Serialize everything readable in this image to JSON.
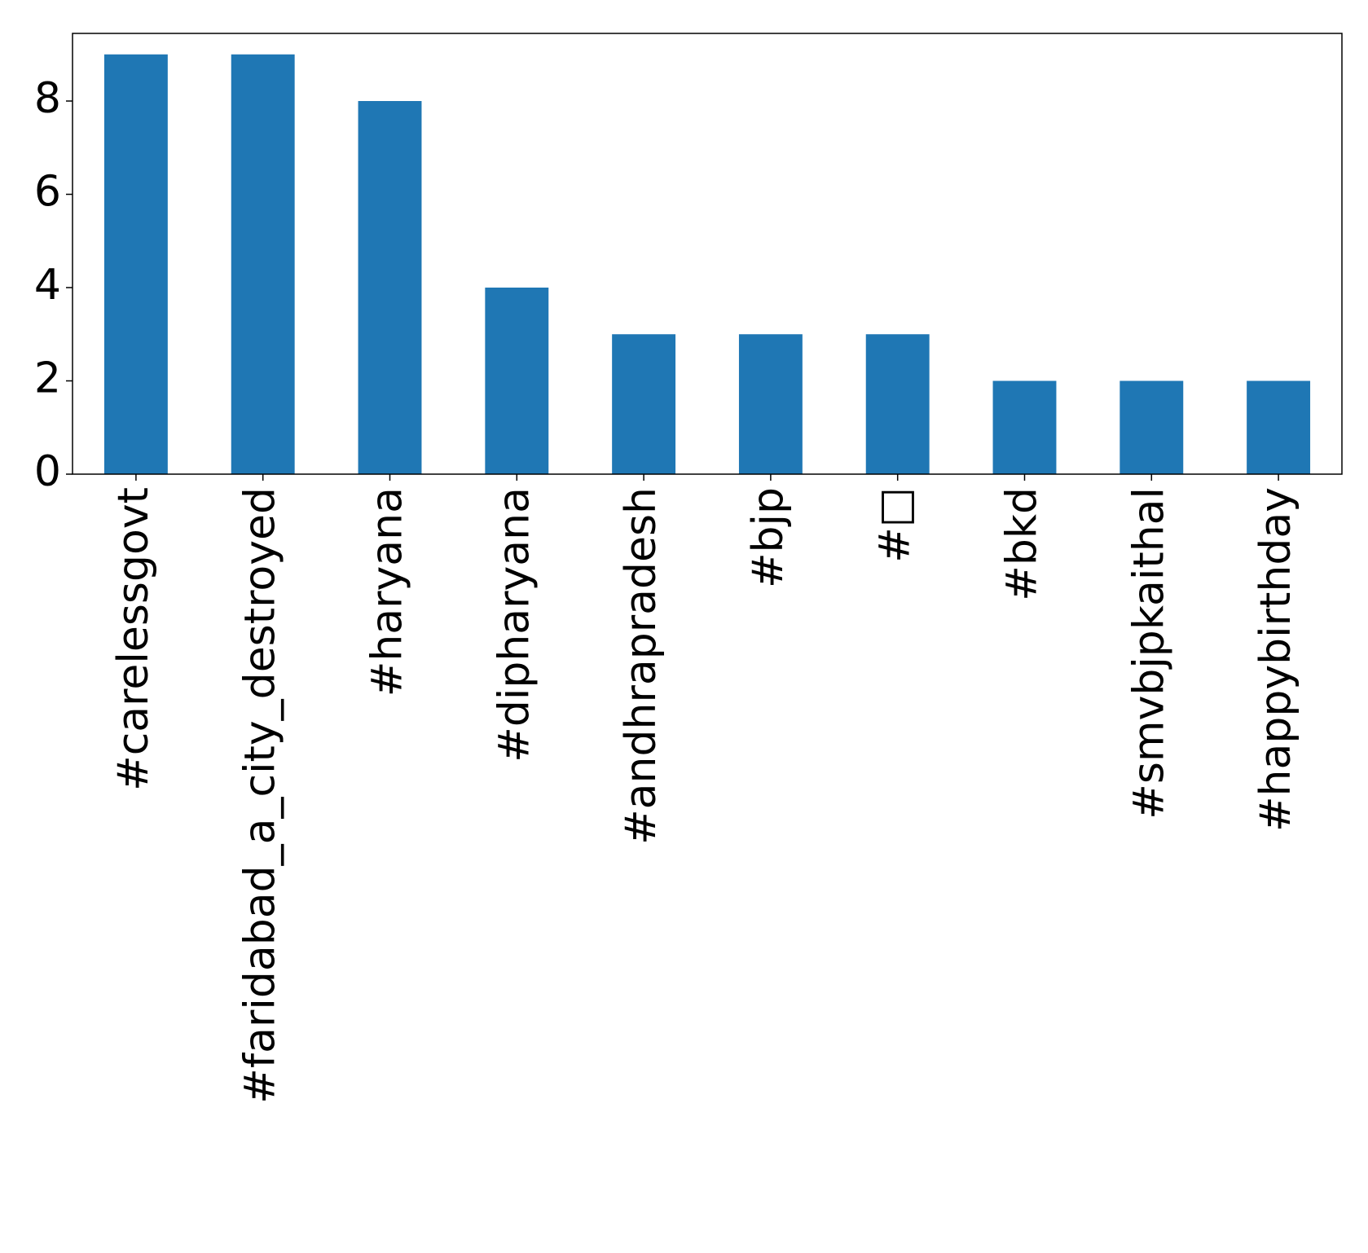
{
  "chart_data": {
    "type": "bar",
    "categories": [
      "#carelessgovt",
      "#faridabad_a_city_destroyed",
      "#haryana",
      "#dipharyana",
      "#andhrapradesh",
      "#bjp",
      "#□",
      "#bkd",
      "#smvbjpkaithal",
      "#happybirthday"
    ],
    "values": [
      9,
      9,
      8,
      4,
      3,
      3,
      3,
      2,
      2,
      2
    ],
    "color": "#1f77b4",
    "ylim": [
      0,
      9.45
    ],
    "yticks": [
      0,
      2,
      4,
      6,
      8
    ],
    "grid": false
  }
}
